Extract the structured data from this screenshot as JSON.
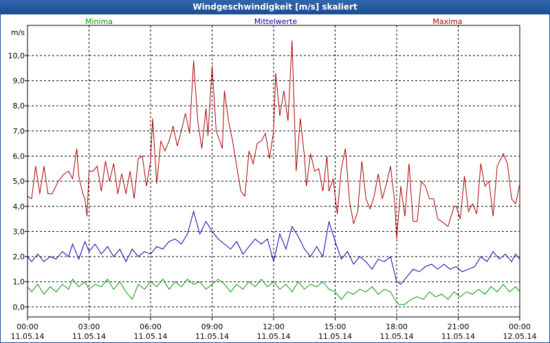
{
  "window_title": "Windgeschwindigkeit [m/s] skaliert",
  "chart_data": {
    "type": "line",
    "title": "Windgeschwindigkeit [m/s] skaliert",
    "ylabel": "m/s",
    "ylim": [
      -0.4,
      11.2
    ],
    "yticks": [
      "0,0",
      "1,0",
      "2,0",
      "3,0",
      "4,0",
      "5,0",
      "6,0",
      "7,0",
      "8,0",
      "9,0",
      "10,0"
    ],
    "xlim_hours": [
      0,
      24
    ],
    "xticks": [
      {
        "time": "00:00",
        "date": "11.05.14"
      },
      {
        "time": "03:00",
        "date": "11.05.14"
      },
      {
        "time": "06:00",
        "date": "11.05.14"
      },
      {
        "time": "09:00",
        "date": "11.05.14"
      },
      {
        "time": "12:00",
        "date": "11.05.14"
      },
      {
        "time": "15:00",
        "date": "11.05.14"
      },
      {
        "time": "18:00",
        "date": "11.05.14"
      },
      {
        "time": "21:00",
        "date": "11.05.14"
      },
      {
        "time": "00:00",
        "date": "12.05.14"
      }
    ],
    "grid": true,
    "series": [
      {
        "name": "Minima",
        "color": "#009900",
        "points": [
          [
            0.0,
            0.8
          ],
          [
            0.2,
            0.6
          ],
          [
            0.5,
            0.9
          ],
          [
            0.8,
            0.5
          ],
          [
            1.1,
            0.8
          ],
          [
            1.4,
            0.6
          ],
          [
            1.7,
            0.9
          ],
          [
            2.0,
            0.7
          ],
          [
            2.2,
            1.1
          ],
          [
            2.5,
            0.8
          ],
          [
            2.8,
            1.0
          ],
          [
            3.0,
            0.7
          ],
          [
            3.3,
            0.9
          ],
          [
            3.6,
            0.8
          ],
          [
            3.9,
            1.1
          ],
          [
            4.2,
            0.7
          ],
          [
            4.5,
            1.0
          ],
          [
            4.8,
            0.6
          ],
          [
            5.1,
            0.3
          ],
          [
            5.4,
            0.9
          ],
          [
            5.7,
            0.7
          ],
          [
            6.0,
            1.0
          ],
          [
            6.3,
            0.8
          ],
          [
            6.6,
            1.1
          ],
          [
            6.9,
            0.7
          ],
          [
            7.2,
            1.0
          ],
          [
            7.5,
            0.8
          ],
          [
            7.8,
            1.1
          ],
          [
            8.1,
            0.9
          ],
          [
            8.4,
            1.0
          ],
          [
            8.7,
            0.7
          ],
          [
            9.0,
            0.9
          ],
          [
            9.3,
            1.1
          ],
          [
            9.6,
            0.9
          ],
          [
            9.9,
            0.6
          ],
          [
            10.2,
            0.9
          ],
          [
            10.5,
            0.7
          ],
          [
            10.8,
            1.0
          ],
          [
            11.1,
            0.8
          ],
          [
            11.4,
            1.1
          ],
          [
            11.7,
            0.8
          ],
          [
            12.0,
            1.0
          ],
          [
            12.3,
            0.7
          ],
          [
            12.6,
            0.9
          ],
          [
            12.9,
            0.6
          ],
          [
            13.2,
            1.0
          ],
          [
            13.5,
            0.7
          ],
          [
            13.8,
            0.9
          ],
          [
            14.1,
            0.8
          ],
          [
            14.4,
            1.0
          ],
          [
            14.7,
            0.7
          ],
          [
            15.0,
            0.6
          ],
          [
            15.3,
            0.3
          ],
          [
            15.6,
            0.6
          ],
          [
            15.9,
            0.5
          ],
          [
            16.2,
            0.7
          ],
          [
            16.5,
            0.6
          ],
          [
            16.8,
            0.8
          ],
          [
            17.1,
            0.5
          ],
          [
            17.4,
            0.7
          ],
          [
            17.7,
            0.6
          ],
          [
            17.9,
            0.3
          ],
          [
            18.1,
            0.1
          ],
          [
            18.4,
            0.1
          ],
          [
            18.7,
            0.3
          ],
          [
            19.0,
            0.4
          ],
          [
            19.3,
            0.3
          ],
          [
            19.6,
            0.6
          ],
          [
            19.9,
            0.4
          ],
          [
            20.2,
            0.5
          ],
          [
            20.5,
            0.3
          ],
          [
            20.8,
            0.6
          ],
          [
            21.1,
            0.4
          ],
          [
            21.4,
            0.6
          ],
          [
            21.7,
            0.5
          ],
          [
            22.0,
            0.7
          ],
          [
            22.3,
            0.5
          ],
          [
            22.6,
            0.8
          ],
          [
            22.9,
            0.6
          ],
          [
            23.2,
            0.9
          ],
          [
            23.5,
            0.6
          ],
          [
            23.8,
            0.8
          ],
          [
            24.0,
            0.6
          ]
        ]
      },
      {
        "name": "Mittelwerte",
        "color": "#0000aa",
        "points": [
          [
            0.0,
            2.0
          ],
          [
            0.2,
            1.8
          ],
          [
            0.5,
            2.1
          ],
          [
            0.8,
            1.8
          ],
          [
            1.1,
            2.0
          ],
          [
            1.4,
            1.9
          ],
          [
            1.7,
            2.2
          ],
          [
            2.0,
            2.0
          ],
          [
            2.2,
            2.5
          ],
          [
            2.5,
            1.9
          ],
          [
            2.8,
            2.6
          ],
          [
            3.0,
            2.2
          ],
          [
            3.3,
            2.5
          ],
          [
            3.6,
            2.1
          ],
          [
            3.9,
            2.4
          ],
          [
            4.2,
            2.0
          ],
          [
            4.5,
            2.3
          ],
          [
            4.8,
            1.8
          ],
          [
            5.1,
            2.3
          ],
          [
            5.4,
            2.0
          ],
          [
            5.7,
            2.2
          ],
          [
            6.0,
            2.1
          ],
          [
            6.3,
            2.4
          ],
          [
            6.6,
            2.3
          ],
          [
            6.9,
            2.6
          ],
          [
            7.2,
            2.7
          ],
          [
            7.5,
            2.5
          ],
          [
            7.8,
            2.9
          ],
          [
            8.1,
            3.8
          ],
          [
            8.4,
            2.9
          ],
          [
            8.7,
            3.4
          ],
          [
            9.0,
            3.0
          ],
          [
            9.3,
            2.7
          ],
          [
            9.6,
            2.5
          ],
          [
            9.9,
            2.3
          ],
          [
            10.2,
            2.6
          ],
          [
            10.5,
            2.1
          ],
          [
            10.8,
            2.4
          ],
          [
            11.1,
            2.7
          ],
          [
            11.4,
            2.5
          ],
          [
            11.7,
            2.7
          ],
          [
            12.0,
            1.8
          ],
          [
            12.3,
            2.9
          ],
          [
            12.6,
            2.3
          ],
          [
            12.9,
            3.2
          ],
          [
            13.2,
            2.8
          ],
          [
            13.5,
            2.3
          ],
          [
            13.8,
            2.0
          ],
          [
            14.1,
            2.4
          ],
          [
            14.4,
            2.0
          ],
          [
            14.7,
            3.4
          ],
          [
            15.0,
            2.6
          ],
          [
            15.3,
            1.9
          ],
          [
            15.6,
            2.2
          ],
          [
            15.9,
            1.7
          ],
          [
            16.2,
            2.0
          ],
          [
            16.5,
            1.8
          ],
          [
            16.8,
            1.5
          ],
          [
            17.1,
            1.9
          ],
          [
            17.4,
            1.8
          ],
          [
            17.7,
            2.0
          ],
          [
            18.0,
            1.0
          ],
          [
            18.2,
            0.9
          ],
          [
            18.5,
            1.2
          ],
          [
            18.8,
            1.5
          ],
          [
            19.1,
            1.4
          ],
          [
            19.4,
            1.6
          ],
          [
            19.7,
            1.7
          ],
          [
            20.0,
            1.5
          ],
          [
            20.3,
            1.7
          ],
          [
            20.6,
            1.5
          ],
          [
            20.9,
            1.6
          ],
          [
            21.2,
            1.4
          ],
          [
            21.5,
            1.5
          ],
          [
            21.8,
            1.6
          ],
          [
            22.1,
            2.0
          ],
          [
            22.4,
            1.8
          ],
          [
            22.7,
            2.2
          ],
          [
            23.0,
            1.9
          ],
          [
            23.3,
            2.1
          ],
          [
            23.6,
            1.8
          ],
          [
            23.8,
            2.1
          ],
          [
            24.0,
            1.9
          ]
        ]
      },
      {
        "name": "Maxima",
        "color": "#aa0000",
        "points": [
          [
            0.0,
            4.4
          ],
          [
            0.2,
            4.3
          ],
          [
            0.4,
            5.6
          ],
          [
            0.6,
            4.5
          ],
          [
            0.8,
            5.6
          ],
          [
            1.0,
            4.5
          ],
          [
            1.2,
            4.5
          ],
          [
            1.5,
            5.0
          ],
          [
            1.8,
            5.3
          ],
          [
            2.0,
            5.4
          ],
          [
            2.2,
            5.1
          ],
          [
            2.4,
            6.3
          ],
          [
            2.5,
            5.2
          ],
          [
            2.7,
            4.5
          ],
          [
            2.8,
            4.3
          ],
          [
            2.9,
            3.6
          ],
          [
            3.0,
            5.4
          ],
          [
            3.2,
            5.4
          ],
          [
            3.4,
            5.6
          ],
          [
            3.6,
            4.6
          ],
          [
            3.8,
            5.8
          ],
          [
            4.0,
            5.0
          ],
          [
            4.2,
            5.7
          ],
          [
            4.4,
            4.5
          ],
          [
            4.6,
            5.3
          ],
          [
            4.8,
            4.5
          ],
          [
            5.0,
            5.4
          ],
          [
            5.2,
            4.3
          ],
          [
            5.4,
            5.9
          ],
          [
            5.6,
            6.0
          ],
          [
            5.8,
            4.8
          ],
          [
            6.0,
            5.8
          ],
          [
            6.1,
            7.5
          ],
          [
            6.3,
            4.9
          ],
          [
            6.5,
            6.6
          ],
          [
            6.7,
            6.2
          ],
          [
            6.9,
            6.6
          ],
          [
            7.1,
            7.2
          ],
          [
            7.3,
            6.4
          ],
          [
            7.5,
            7.0
          ],
          [
            7.7,
            7.7
          ],
          [
            7.9,
            6.9
          ],
          [
            8.1,
            9.8
          ],
          [
            8.3,
            7.4
          ],
          [
            8.5,
            6.3
          ],
          [
            8.7,
            7.9
          ],
          [
            8.8,
            6.8
          ],
          [
            9.0,
            9.6
          ],
          [
            9.2,
            7.0
          ],
          [
            9.5,
            6.3
          ],
          [
            9.6,
            8.6
          ],
          [
            9.8,
            7.4
          ],
          [
            10.0,
            6.6
          ],
          [
            10.2,
            5.6
          ],
          [
            10.4,
            4.6
          ],
          [
            10.6,
            4.4
          ],
          [
            10.8,
            6.2
          ],
          [
            11.0,
            5.7
          ],
          [
            11.2,
            6.5
          ],
          [
            11.4,
            6.6
          ],
          [
            11.6,
            6.9
          ],
          [
            11.8,
            5.9
          ],
          [
            12.0,
            7.0
          ],
          [
            12.1,
            9.3
          ],
          [
            12.3,
            7.6
          ],
          [
            12.5,
            8.6
          ],
          [
            12.7,
            7.4
          ],
          [
            12.9,
            10.6
          ],
          [
            13.1,
            5.4
          ],
          [
            13.3,
            7.5
          ],
          [
            13.5,
            6.0
          ],
          [
            13.6,
            4.8
          ],
          [
            13.8,
            6.1
          ],
          [
            14.0,
            5.4
          ],
          [
            14.2,
            5.5
          ],
          [
            14.4,
            4.6
          ],
          [
            14.6,
            6.0
          ],
          [
            14.7,
            4.6
          ],
          [
            14.9,
            5.1
          ],
          [
            15.1,
            3.7
          ],
          [
            15.3,
            5.5
          ],
          [
            15.5,
            6.3
          ],
          [
            15.7,
            4.2
          ],
          [
            15.9,
            3.3
          ],
          [
            16.1,
            3.8
          ],
          [
            16.3,
            5.8
          ],
          [
            16.5,
            4.3
          ],
          [
            16.7,
            3.9
          ],
          [
            16.9,
            4.4
          ],
          [
            17.1,
            5.3
          ],
          [
            17.3,
            4.3
          ],
          [
            17.5,
            4.9
          ],
          [
            17.7,
            5.6
          ],
          [
            17.9,
            4.2
          ],
          [
            18.0,
            2.7
          ],
          [
            18.2,
            4.8
          ],
          [
            18.4,
            3.6
          ],
          [
            18.6,
            5.7
          ],
          [
            18.8,
            3.4
          ],
          [
            19.0,
            3.4
          ],
          [
            19.2,
            5.0
          ],
          [
            19.4,
            4.8
          ],
          [
            19.6,
            4.3
          ],
          [
            19.8,
            4.3
          ],
          [
            20.0,
            3.5
          ],
          [
            20.2,
            3.4
          ],
          [
            20.5,
            3.2
          ],
          [
            20.8,
            4.0
          ],
          [
            20.9,
            4.0
          ],
          [
            21.1,
            3.5
          ],
          [
            21.3,
            5.2
          ],
          [
            21.5,
            3.8
          ],
          [
            21.7,
            4.1
          ],
          [
            21.9,
            3.7
          ],
          [
            22.1,
            5.7
          ],
          [
            22.3,
            4.8
          ],
          [
            22.5,
            5.0
          ],
          [
            22.7,
            3.6
          ],
          [
            22.9,
            5.6
          ],
          [
            23.2,
            6.1
          ],
          [
            23.4,
            5.7
          ],
          [
            23.6,
            4.3
          ],
          [
            23.8,
            4.1
          ],
          [
            24.0,
            4.9
          ]
        ]
      }
    ]
  }
}
